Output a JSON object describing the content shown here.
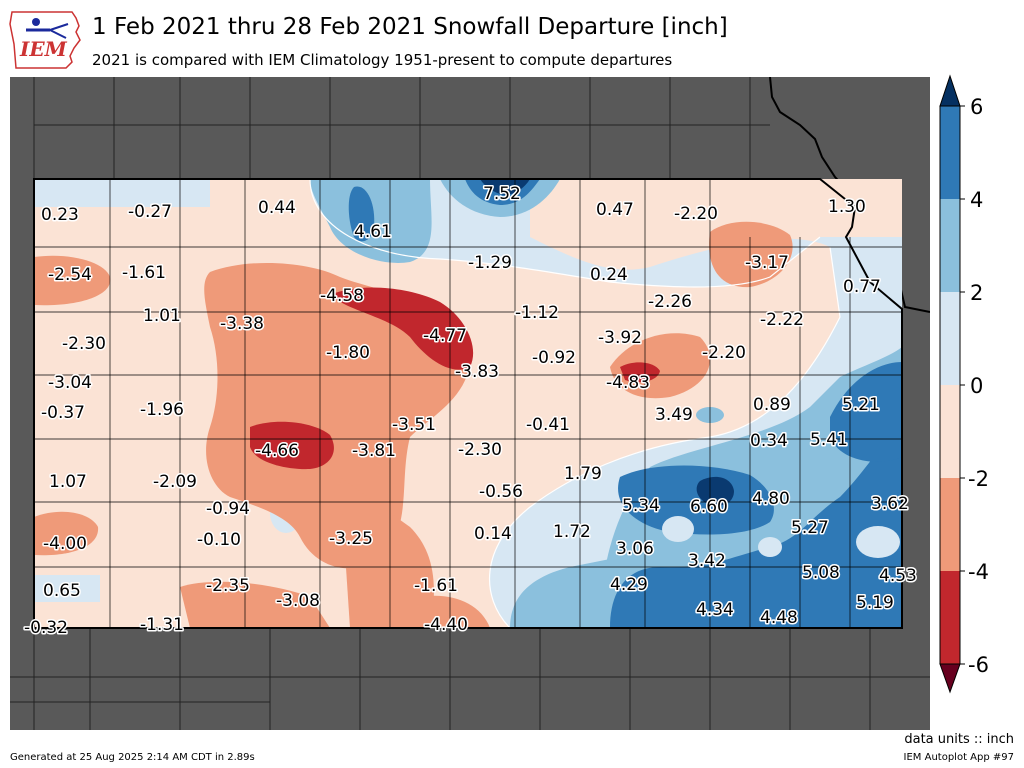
{
  "header": {
    "title": "1 Feb 2021 thru 28 Feb 2021 Snowfall Departure [inch]",
    "subtitle": "2021 is compared with IEM Climatology 1951-present to compute departures",
    "logo_text": "IEM"
  },
  "footer": {
    "units": "data units :: inch",
    "generated": "Generated at 25 Aug 2025 2:14 AM CDT in 2.89s",
    "app": "IEM Autoplot App #97"
  },
  "colors": {
    "outside_land": "#595959",
    "neg6": "#c1272d",
    "neg4": "#ef9a79",
    "neg2": "#fbe3d5",
    "pos0": "#d7e7f3",
    "pos2": "#8bc0dd",
    "pos4": "#2f79b6",
    "pos6": "#0a3a70",
    "under": "#67001f",
    "over": "#053061"
  },
  "colorbar": {
    "ticks": [
      "6",
      "4",
      "2",
      "0",
      "-2",
      "-4",
      "-6"
    ]
  },
  "station_values": [
    "0.23",
    "-0.27",
    "0.44",
    "4.61",
    "7.52",
    "0.47",
    "-2.20",
    "1.30",
    "-2.54",
    "-1.61",
    "-1.29",
    "0.24",
    "-3.17",
    "0.77",
    "-4.58",
    "-2.26",
    "-2.22",
    "1.01",
    "-3.38",
    "-4.77",
    "-1.12",
    "-2.30",
    "-1.80",
    "-3.92",
    "-0.92",
    "-2.20",
    "-3.83",
    "-3.04",
    "-4.83",
    "-0.37",
    "-1.96",
    "-3.51",
    "3.49",
    "0.89",
    "5.21",
    "-0.41",
    "0.34",
    "5.41",
    "-4.66",
    "-3.81",
    "-2.30",
    "1.79",
    "1.07",
    "-2.09",
    "-0.56",
    "5.34",
    "6.60",
    "4.80",
    "3.62",
    "-0.94",
    "5.27",
    "-4.00",
    "-0.10",
    "-3.25",
    "0.14",
    "1.72",
    "3.06",
    "3.42",
    "5.08",
    "4.53",
    "0.65",
    "-2.35",
    "-3.08",
    "-1.61",
    "4.29",
    "4.34",
    "4.48",
    "5.19",
    "-0.32",
    "-1.31",
    "-4.40"
  ]
}
